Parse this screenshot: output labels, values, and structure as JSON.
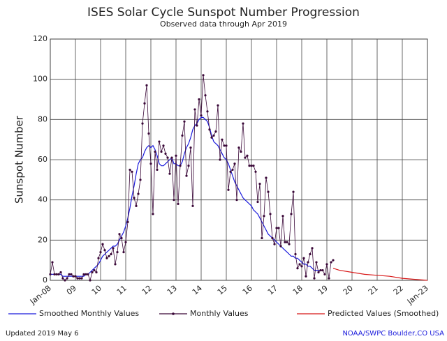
{
  "chart_data": {
    "type": "line",
    "title": "ISES Solar Cycle Sunspot Number Progression",
    "subtitle": "Observed data through Apr 2019",
    "y_label": "Sunspot Number",
    "updated": "Updated 2019 May 6",
    "credit": "NOAA/SWPC Boulder,CO USA",
    "xlim": [
      2008,
      2023
    ],
    "ylim": [
      0,
      120
    ],
    "xticks": [
      {
        "value": 2008,
        "label": "Jan-08"
      },
      {
        "value": 2009,
        "label": "09"
      },
      {
        "value": 2010,
        "label": "10"
      },
      {
        "value": 2011,
        "label": "11"
      },
      {
        "value": 2012,
        "label": "12"
      },
      {
        "value": 2013,
        "label": "13"
      },
      {
        "value": 2014,
        "label": "14"
      },
      {
        "value": 2015,
        "label": "15"
      },
      {
        "value": 2016,
        "label": "16"
      },
      {
        "value": 2017,
        "label": "17"
      },
      {
        "value": 2018,
        "label": "18"
      },
      {
        "value": 2019,
        "label": "19"
      },
      {
        "value": 2020,
        "label": "20"
      },
      {
        "value": 2021,
        "label": "21"
      },
      {
        "value": 2022,
        "label": "22"
      },
      {
        "value": 2023,
        "label": "Jan-23"
      }
    ],
    "yticks": [
      0,
      20,
      40,
      60,
      80,
      100,
      120
    ],
    "grid": true,
    "series": [
      {
        "name": "Smoothed Monthly Values",
        "color": "#1a1adc",
        "style": "line",
        "x": [
          2008,
          2008.083,
          2008.167,
          2008.25,
          2008.333,
          2008.417,
          2008.5,
          2008.583,
          2008.667,
          2008.75,
          2008.833,
          2008.917,
          2009,
          2009.083,
          2009.167,
          2009.25,
          2009.333,
          2009.417,
          2009.5,
          2009.583,
          2009.667,
          2009.75,
          2009.833,
          2009.917,
          2010,
          2010.083,
          2010.167,
          2010.25,
          2010.333,
          2010.417,
          2010.5,
          2010.583,
          2010.667,
          2010.75,
          2010.833,
          2010.917,
          2011,
          2011.083,
          2011.167,
          2011.25,
          2011.333,
          2011.417,
          2011.5,
          2011.583,
          2011.667,
          2011.75,
          2011.833,
          2011.917,
          2012,
          2012.083,
          2012.167,
          2012.25,
          2012.333,
          2012.417,
          2012.5,
          2012.583,
          2012.667,
          2012.75,
          2012.833,
          2012.917,
          2013,
          2013.083,
          2013.167,
          2013.25,
          2013.333,
          2013.417,
          2013.5,
          2013.583,
          2013.667,
          2013.75,
          2013.833,
          2013.917,
          2014,
          2014.083,
          2014.167,
          2014.25,
          2014.333,
          2014.417,
          2014.5,
          2014.583,
          2014.667,
          2014.75,
          2014.833,
          2014.917,
          2015,
          2015.083,
          2015.167,
          2015.25,
          2015.333,
          2015.417,
          2015.5,
          2015.583,
          2015.667,
          2015.75,
          2015.833,
          2015.917,
          2016,
          2016.083,
          2016.167,
          2016.25,
          2016.333,
          2016.417,
          2016.5,
          2016.583,
          2016.667,
          2016.75,
          2016.833,
          2016.917,
          2017,
          2017.083,
          2017.167,
          2017.25,
          2017.333,
          2017.417,
          2017.5,
          2017.583,
          2017.667,
          2017.75,
          2017.833,
          2017.917,
          2018,
          2018.083,
          2018.167,
          2018.25,
          2018.333,
          2018.417,
          2018.5,
          2018.583,
          2018.667,
          2018.75
        ],
        "values": [
          3,
          3,
          3,
          3,
          3,
          3,
          2,
          2,
          2,
          2,
          2,
          2,
          2,
          2,
          2,
          2,
          2,
          3,
          3,
          4,
          5,
          6,
          7,
          8,
          10,
          12,
          13,
          14,
          15,
          16,
          17,
          17,
          18,
          20,
          22,
          24,
          27,
          31,
          36,
          42,
          47,
          53,
          58,
          60,
          61,
          64,
          66,
          67,
          66,
          67,
          65,
          62,
          58,
          57,
          57,
          58,
          59,
          60,
          61,
          58,
          58,
          57,
          57,
          59,
          63,
          66,
          68,
          71,
          75,
          77,
          78,
          80,
          81,
          81,
          80,
          79,
          76,
          72,
          69,
          68,
          67,
          65,
          63,
          61,
          60,
          58,
          55,
          52,
          49,
          47,
          45,
          43,
          41,
          40,
          39,
          38,
          37,
          35,
          34,
          33,
          31,
          29,
          27,
          25,
          23,
          22,
          21,
          20,
          19,
          18,
          17,
          16,
          15,
          14,
          13,
          12,
          12,
          11,
          11,
          10,
          9,
          8,
          8,
          7,
          7,
          6,
          5,
          5,
          5,
          5
        ]
      },
      {
        "name": "Monthly Values",
        "color": "#3a0838",
        "style": "markers",
        "x": [
          2008,
          2008.083,
          2008.167,
          2008.25,
          2008.333,
          2008.417,
          2008.5,
          2008.583,
          2008.667,
          2008.75,
          2008.833,
          2008.917,
          2009,
          2009.083,
          2009.167,
          2009.25,
          2009.333,
          2009.417,
          2009.5,
          2009.583,
          2009.667,
          2009.75,
          2009.833,
          2009.917,
          2010,
          2010.083,
          2010.167,
          2010.25,
          2010.333,
          2010.417,
          2010.5,
          2010.583,
          2010.667,
          2010.75,
          2010.833,
          2010.917,
          2011,
          2011.083,
          2011.167,
          2011.25,
          2011.333,
          2011.417,
          2011.5,
          2011.583,
          2011.667,
          2011.75,
          2011.833,
          2011.917,
          2012,
          2012.083,
          2012.167,
          2012.25,
          2012.333,
          2012.417,
          2012.5,
          2012.583,
          2012.667,
          2012.75,
          2012.833,
          2012.917,
          2013,
          2013.083,
          2013.167,
          2013.25,
          2013.333,
          2013.417,
          2013.5,
          2013.583,
          2013.667,
          2013.75,
          2013.833,
          2013.917,
          2014,
          2014.083,
          2014.167,
          2014.25,
          2014.333,
          2014.417,
          2014.5,
          2014.583,
          2014.667,
          2014.75,
          2014.833,
          2014.917,
          2015,
          2015.083,
          2015.167,
          2015.25,
          2015.333,
          2015.417,
          2015.5,
          2015.583,
          2015.667,
          2015.75,
          2015.833,
          2015.917,
          2016,
          2016.083,
          2016.167,
          2016.25,
          2016.333,
          2016.417,
          2016.5,
          2016.583,
          2016.667,
          2016.75,
          2016.833,
          2016.917,
          2017,
          2017.083,
          2017.167,
          2017.25,
          2017.333,
          2017.417,
          2017.5,
          2017.583,
          2017.667,
          2017.75,
          2017.833,
          2017.917,
          2018,
          2018.083,
          2018.167,
          2018.25,
          2018.333,
          2018.417,
          2018.5,
          2018.583,
          2018.667,
          2018.75,
          2018.833,
          2018.917,
          2019,
          2019.083,
          2019.167,
          2019.25
        ],
        "values": [
          3,
          9,
          3,
          3,
          3,
          4,
          1,
          0,
          1,
          3,
          3,
          2,
          2,
          1,
          1,
          1,
          3,
          3,
          3,
          0,
          4,
          5,
          4,
          11,
          14,
          18,
          15,
          11,
          12,
          13,
          16,
          8,
          14,
          23,
          21,
          14,
          19,
          29,
          55,
          54,
          41,
          37,
          43,
          50,
          78,
          88,
          97,
          73,
          58,
          33,
          64,
          55,
          69,
          64,
          67,
          63,
          61,
          53,
          61,
          40,
          62,
          38,
          57,
          72,
          79,
          52,
          57,
          66,
          37,
          85,
          77,
          90,
          82,
          102,
          92,
          84,
          75,
          71,
          72,
          74,
          87,
          60,
          70,
          67,
          67,
          45,
          54,
          55,
          58,
          40,
          66,
          64,
          78,
          61,
          62,
          57,
          57,
          57,
          54,
          39,
          48,
          21,
          32,
          51,
          44,
          33,
          21,
          18,
          26,
          26,
          17,
          32,
          19,
          19,
          18,
          33,
          44,
          13,
          6,
          8,
          7,
          11,
          2,
          9,
          13,
          16,
          1,
          9,
          4,
          5,
          5,
          3,
          8,
          1,
          9,
          10
        ]
      },
      {
        "name": "Predicted Values (Smoothed)",
        "color": "#d81818",
        "style": "line",
        "x": [
          2019.25,
          2019.5,
          2020,
          2020.5,
          2021,
          2021.5,
          2022,
          2022.5,
          2023
        ],
        "values": [
          6,
          5,
          4,
          3,
          2.5,
          2,
          1,
          0.5,
          0
        ]
      }
    ]
  }
}
